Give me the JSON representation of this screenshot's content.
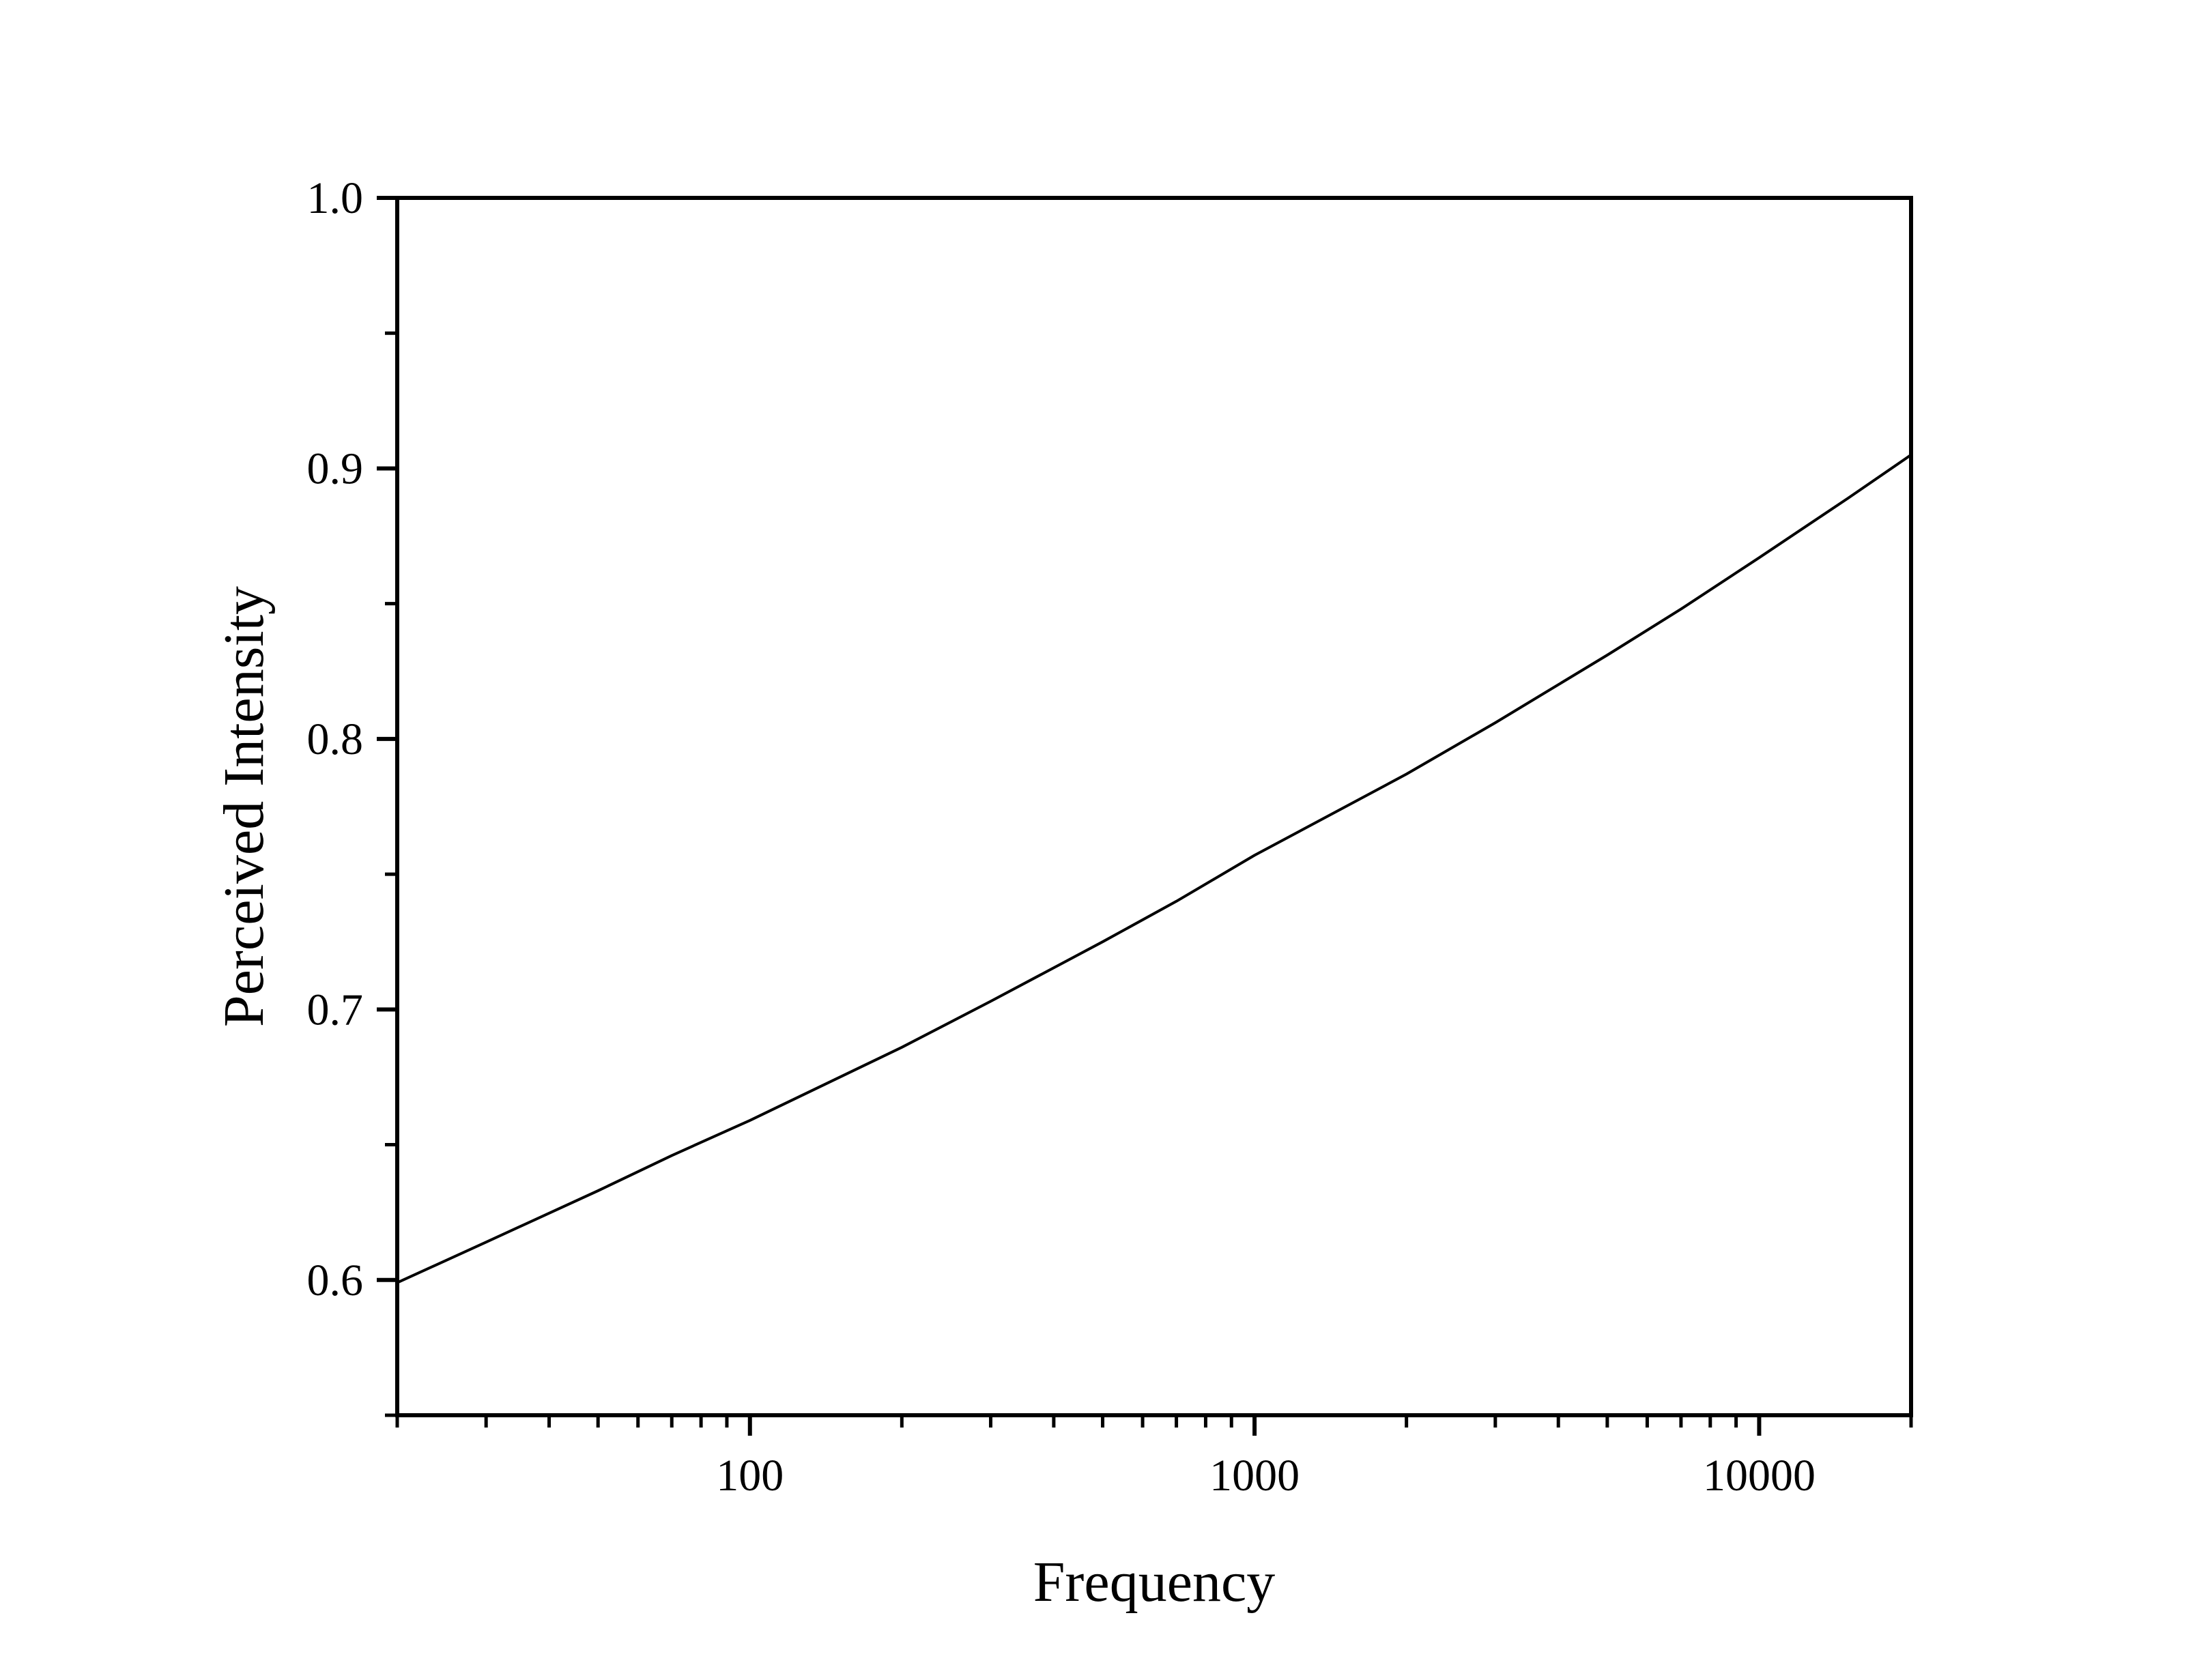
{
  "chart_data": {
    "type": "line",
    "title": "",
    "xlabel": "Frequency",
    "ylabel": "Perceived Intensity",
    "x_scale": "log",
    "xlim": [
      20,
      20000
    ],
    "ylim": [
      0.55,
      1.0
    ],
    "x_ticks": [
      {
        "value": 100,
        "label": "100"
      },
      {
        "value": 1000,
        "label": "1000"
      },
      {
        "value": 10000,
        "label": "10000"
      }
    ],
    "y_ticks": [
      {
        "value": 0.6,
        "label": "0.6"
      },
      {
        "value": 0.7,
        "label": "0.7"
      },
      {
        "value": 0.8,
        "label": "0.8"
      },
      {
        "value": 0.9,
        "label": "0.9"
      },
      {
        "value": 1.0,
        "label": "1.0"
      }
    ],
    "y_minor_ticks": [
      0.55,
      0.65,
      0.75,
      0.85,
      0.95
    ],
    "grid": false,
    "legend": "none",
    "line_color": "#000000",
    "series": [
      {
        "x": [
          20,
          30,
          50,
          70,
          100,
          200,
          300,
          500,
          700,
          1000,
          2000,
          3000,
          5000,
          7000,
          10000,
          15000,
          20000
        ],
        "y": [
          0.599,
          0.614,
          0.633,
          0.646,
          0.659,
          0.686,
          0.703,
          0.725,
          0.74,
          0.757,
          0.787,
          0.806,
          0.831,
          0.848,
          0.867,
          0.889,
          0.905
        ]
      }
    ]
  }
}
